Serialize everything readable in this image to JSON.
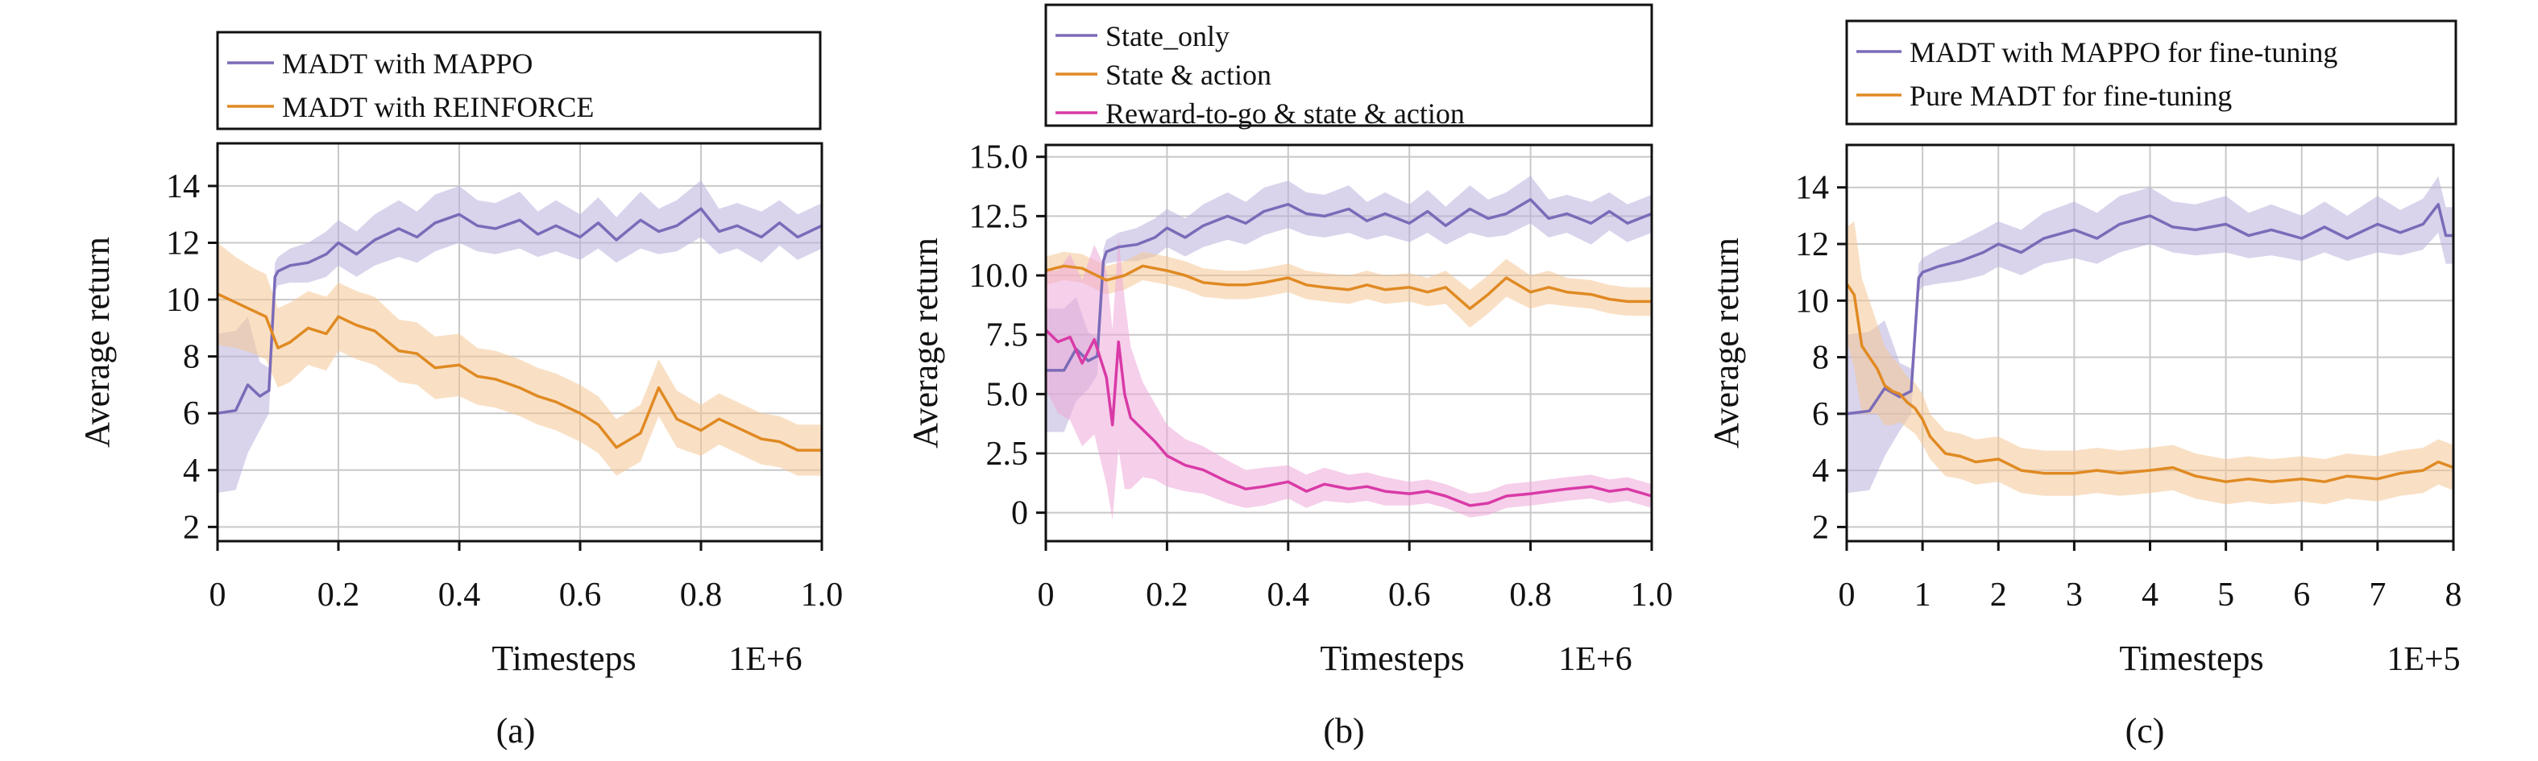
{
  "colors": {
    "purple": "#7b6bb8",
    "purple_band": "#b9b1dd",
    "orange": "#e08a23",
    "orange_band": "#f4c796",
    "magenta": "#d93aa6",
    "magenta_band": "#efa7d8",
    "grid": "#c8c8c8"
  },
  "chart_data": [
    {
      "id": "a",
      "type": "line",
      "caption": "(a)",
      "xlabel": "Timesteps",
      "ylabel": "Average return",
      "x_multiplier": "1E+6",
      "xlim": [
        0,
        1.0
      ],
      "ylim": [
        1.5,
        15.5
      ],
      "xticks": [
        0,
        0.2,
        0.4,
        0.6,
        0.8,
        1.0
      ],
      "xticklabels": [
        "0",
        "0.2",
        "0.4",
        "0.6",
        "0.8",
        "1.0"
      ],
      "yticks": [
        2,
        4,
        6,
        8,
        10,
        12,
        14
      ],
      "yticklabels": [
        "2",
        "4",
        "6",
        "8",
        "10",
        "12",
        "14"
      ],
      "grid": true,
      "legend_position": "top",
      "series": [
        {
          "name": "MADT with MAPPO",
          "color": "purple",
          "x": [
            0,
            0.03,
            0.05,
            0.07,
            0.085,
            0.095,
            0.1,
            0.12,
            0.15,
            0.18,
            0.2,
            0.23,
            0.26,
            0.3,
            0.33,
            0.36,
            0.4,
            0.43,
            0.46,
            0.5,
            0.53,
            0.56,
            0.6,
            0.63,
            0.66,
            0.7,
            0.73,
            0.76,
            0.8,
            0.83,
            0.86,
            0.9,
            0.93,
            0.96,
            1.0
          ],
          "y": [
            6.0,
            6.1,
            7.0,
            6.6,
            6.8,
            10.8,
            11.0,
            11.2,
            11.3,
            11.6,
            12.0,
            11.6,
            12.1,
            12.5,
            12.2,
            12.7,
            13.0,
            12.6,
            12.5,
            12.8,
            12.3,
            12.6,
            12.2,
            12.7,
            12.1,
            12.8,
            12.4,
            12.6,
            13.2,
            12.4,
            12.6,
            12.2,
            12.7,
            12.2,
            12.6
          ],
          "band": [
            2.8,
            2.8,
            2.4,
            1.2,
            0.8,
            0.5,
            0.5,
            0.6,
            0.7,
            0.8,
            0.8,
            0.8,
            0.9,
            1.0,
            0.9,
            1.0,
            1.0,
            0.9,
            0.9,
            1.0,
            0.8,
            0.9,
            0.8,
            0.9,
            0.8,
            1.0,
            0.8,
            0.9,
            1.0,
            0.8,
            0.8,
            0.9,
            0.8,
            0.8,
            0.8
          ]
        },
        {
          "name": "MADT with REINFORCE",
          "color": "orange",
          "x": [
            0,
            0.03,
            0.06,
            0.08,
            0.1,
            0.12,
            0.15,
            0.18,
            0.2,
            0.23,
            0.26,
            0.3,
            0.33,
            0.36,
            0.4,
            0.43,
            0.46,
            0.5,
            0.53,
            0.56,
            0.6,
            0.63,
            0.66,
            0.7,
            0.73,
            0.76,
            0.8,
            0.83,
            0.86,
            0.9,
            0.93,
            0.96,
            1.0
          ],
          "y": [
            10.2,
            9.9,
            9.6,
            9.4,
            8.3,
            8.5,
            9.0,
            8.8,
            9.4,
            9.1,
            8.9,
            8.2,
            8.1,
            7.6,
            7.7,
            7.3,
            7.2,
            6.9,
            6.6,
            6.4,
            6.0,
            5.6,
            4.8,
            5.3,
            6.9,
            5.8,
            5.4,
            5.8,
            5.5,
            5.1,
            5.0,
            4.7,
            4.7
          ],
          "band": [
            1.8,
            1.6,
            1.5,
            1.5,
            1.4,
            1.4,
            1.3,
            1.3,
            1.2,
            1.2,
            1.2,
            1.1,
            1.1,
            1.1,
            1.1,
            1.0,
            1.0,
            1.0,
            1.0,
            1.0,
            1.0,
            1.0,
            1.0,
            1.0,
            1.0,
            1.0,
            0.9,
            0.9,
            0.9,
            0.9,
            0.9,
            0.9,
            0.9
          ]
        }
      ]
    },
    {
      "id": "b",
      "type": "line",
      "caption": "(b)",
      "xlabel": "Timesteps",
      "ylabel": "Average return",
      "x_multiplier": "1E+6",
      "xlim": [
        0,
        1.0
      ],
      "ylim": [
        -1.2,
        15.5
      ],
      "xticks": [
        0,
        0.2,
        0.4,
        0.6,
        0.8,
        1.0
      ],
      "xticklabels": [
        "0",
        "0.2",
        "0.4",
        "0.6",
        "0.8",
        "1.0"
      ],
      "yticks": [
        0,
        2.5,
        5.0,
        7.5,
        10.0,
        12.5,
        15.0
      ],
      "yticklabels": [
        "0",
        "2.5",
        "5.0",
        "7.5",
        "10.0",
        "12.5",
        "15.0"
      ],
      "grid": true,
      "legend_position": "top",
      "series": [
        {
          "name": "State_only",
          "color": "purple",
          "x": [
            0,
            0.03,
            0.05,
            0.07,
            0.085,
            0.095,
            0.1,
            0.12,
            0.15,
            0.18,
            0.2,
            0.23,
            0.26,
            0.3,
            0.33,
            0.36,
            0.4,
            0.43,
            0.46,
            0.5,
            0.53,
            0.56,
            0.6,
            0.63,
            0.66,
            0.7,
            0.73,
            0.76,
            0.8,
            0.83,
            0.86,
            0.9,
            0.93,
            0.96,
            1.0
          ],
          "y": [
            6.0,
            6.0,
            6.9,
            6.4,
            6.6,
            10.6,
            11.0,
            11.2,
            11.3,
            11.6,
            12.0,
            11.6,
            12.1,
            12.5,
            12.2,
            12.7,
            13.0,
            12.6,
            12.5,
            12.8,
            12.3,
            12.6,
            12.2,
            12.7,
            12.1,
            12.8,
            12.4,
            12.6,
            13.2,
            12.4,
            12.6,
            12.2,
            12.7,
            12.2,
            12.6
          ],
          "band": [
            2.6,
            2.6,
            2.2,
            1.2,
            0.8,
            0.5,
            0.5,
            0.6,
            0.7,
            0.8,
            0.8,
            0.8,
            0.9,
            1.0,
            0.9,
            1.0,
            1.0,
            0.9,
            0.9,
            1.0,
            0.8,
            0.9,
            0.8,
            0.9,
            0.8,
            1.0,
            0.8,
            0.9,
            1.0,
            0.8,
            0.8,
            0.9,
            0.8,
            0.8,
            0.8
          ]
        },
        {
          "name": "State & action",
          "color": "orange",
          "x": [
            0,
            0.03,
            0.06,
            0.1,
            0.13,
            0.16,
            0.2,
            0.23,
            0.26,
            0.3,
            0.33,
            0.36,
            0.4,
            0.43,
            0.46,
            0.5,
            0.53,
            0.56,
            0.6,
            0.63,
            0.66,
            0.7,
            0.73,
            0.76,
            0.8,
            0.83,
            0.86,
            0.9,
            0.93,
            0.96,
            1.0
          ],
          "y": [
            10.2,
            10.4,
            10.3,
            9.8,
            10.0,
            10.4,
            10.2,
            10.0,
            9.7,
            9.6,
            9.6,
            9.7,
            9.9,
            9.6,
            9.5,
            9.4,
            9.6,
            9.4,
            9.5,
            9.3,
            9.5,
            8.6,
            9.2,
            9.9,
            9.3,
            9.5,
            9.3,
            9.2,
            9.0,
            8.9,
            8.9
          ],
          "band": [
            0.6,
            0.6,
            0.6,
            0.6,
            0.6,
            0.6,
            0.6,
            0.6,
            0.6,
            0.6,
            0.6,
            0.6,
            0.6,
            0.6,
            0.6,
            0.6,
            0.6,
            0.6,
            0.6,
            0.6,
            0.7,
            0.8,
            0.8,
            0.8,
            0.7,
            0.7,
            0.6,
            0.6,
            0.6,
            0.6,
            0.6
          ]
        },
        {
          "name": "Reward-to-go & state & action",
          "color": "magenta",
          "x": [
            0,
            0.02,
            0.04,
            0.06,
            0.08,
            0.1,
            0.11,
            0.12,
            0.13,
            0.14,
            0.16,
            0.18,
            0.2,
            0.23,
            0.26,
            0.3,
            0.33,
            0.36,
            0.4,
            0.43,
            0.46,
            0.5,
            0.53,
            0.56,
            0.6,
            0.63,
            0.66,
            0.7,
            0.73,
            0.76,
            0.8,
            0.83,
            0.86,
            0.9,
            0.93,
            0.96,
            1.0
          ],
          "y": [
            7.7,
            7.2,
            7.4,
            6.3,
            7.3,
            5.7,
            3.7,
            7.2,
            5.0,
            4.0,
            3.5,
            3.0,
            2.4,
            2.0,
            1.8,
            1.3,
            1.0,
            1.1,
            1.3,
            0.9,
            1.2,
            1.0,
            1.1,
            0.9,
            0.8,
            0.9,
            0.7,
            0.3,
            0.4,
            0.7,
            0.8,
            0.9,
            1.0,
            1.1,
            0.9,
            1.0,
            0.7
          ],
          "band": [
            2.5,
            3.0,
            3.5,
            3.5,
            4.0,
            4.5,
            4.0,
            4.5,
            4.0,
            3.0,
            2.0,
            1.6,
            1.3,
            1.1,
            1.0,
            0.9,
            0.8,
            0.8,
            0.7,
            0.7,
            0.7,
            0.6,
            0.6,
            0.6,
            0.5,
            0.5,
            0.5,
            0.5,
            0.5,
            0.5,
            0.5,
            0.5,
            0.5,
            0.5,
            0.5,
            0.5,
            0.5
          ]
        }
      ]
    },
    {
      "id": "c",
      "type": "line",
      "caption": "(c)",
      "xlabel": "Timesteps",
      "ylabel": "Average return",
      "x_multiplier": "1E+5",
      "xlim": [
        0,
        8
      ],
      "ylim": [
        1.5,
        15.5
      ],
      "xticks": [
        0,
        1,
        2,
        3,
        4,
        5,
        6,
        7,
        8
      ],
      "xticklabels": [
        "0",
        "1",
        "2",
        "3",
        "4",
        "5",
        "6",
        "7",
        "8"
      ],
      "yticks": [
        2,
        4,
        6,
        8,
        10,
        12,
        14
      ],
      "yticklabels": [
        "2",
        "4",
        "6",
        "8",
        "10",
        "12",
        "14"
      ],
      "grid": true,
      "legend_position": "top",
      "series": [
        {
          "name": "MADT with MAPPO for fine-tuning",
          "color": "purple",
          "x": [
            0,
            0.3,
            0.5,
            0.7,
            0.85,
            0.95,
            1.0,
            1.2,
            1.5,
            1.8,
            2.0,
            2.3,
            2.6,
            3.0,
            3.3,
            3.6,
            4.0,
            4.3,
            4.6,
            5.0,
            5.3,
            5.6,
            6.0,
            6.3,
            6.6,
            7.0,
            7.3,
            7.6,
            7.8,
            7.9,
            8.0
          ],
          "y": [
            6.0,
            6.1,
            6.9,
            6.6,
            6.8,
            10.8,
            11.0,
            11.2,
            11.4,
            11.7,
            12.0,
            11.7,
            12.2,
            12.5,
            12.2,
            12.7,
            13.0,
            12.6,
            12.5,
            12.7,
            12.3,
            12.5,
            12.2,
            12.6,
            12.2,
            12.7,
            12.4,
            12.7,
            13.4,
            12.3,
            12.3
          ],
          "band": [
            2.8,
            2.8,
            2.4,
            1.2,
            0.8,
            0.5,
            0.5,
            0.6,
            0.7,
            0.8,
            0.8,
            0.8,
            0.9,
            1.0,
            0.9,
            1.0,
            1.0,
            0.9,
            0.9,
            1.0,
            0.8,
            0.9,
            0.8,
            0.9,
            0.8,
            1.0,
            0.8,
            0.9,
            1.0,
            1.0,
            1.0
          ]
        },
        {
          "name": "Pure MADT for fine-tuning",
          "color": "orange",
          "x": [
            0,
            0.1,
            0.2,
            0.3,
            0.4,
            0.5,
            0.6,
            0.7,
            0.8,
            0.9,
            1.0,
            1.1,
            1.3,
            1.5,
            1.7,
            2.0,
            2.3,
            2.6,
            3.0,
            3.3,
            3.6,
            4.0,
            4.3,
            4.6,
            5.0,
            5.3,
            5.6,
            6.0,
            6.3,
            6.6,
            7.0,
            7.3,
            7.6,
            7.8,
            8.0
          ],
          "y": [
            10.6,
            10.2,
            8.4,
            8.0,
            7.6,
            7.0,
            6.8,
            6.7,
            6.4,
            6.2,
            5.8,
            5.2,
            4.6,
            4.5,
            4.3,
            4.4,
            4.0,
            3.9,
            3.9,
            4.0,
            3.9,
            4.0,
            4.1,
            3.8,
            3.6,
            3.7,
            3.6,
            3.7,
            3.6,
            3.8,
            3.7,
            3.9,
            4.0,
            4.3,
            4.1
          ],
          "band": [
            2.0,
            2.6,
            2.4,
            2.0,
            1.6,
            1.4,
            1.2,
            1.0,
            0.9,
            0.9,
            0.9,
            0.8,
            0.8,
            0.8,
            0.8,
            0.8,
            0.8,
            0.8,
            0.8,
            0.8,
            0.8,
            0.8,
            0.8,
            0.8,
            0.8,
            0.8,
            0.8,
            0.8,
            0.8,
            0.8,
            0.8,
            0.8,
            0.8,
            0.8,
            0.8
          ]
        }
      ]
    }
  ]
}
